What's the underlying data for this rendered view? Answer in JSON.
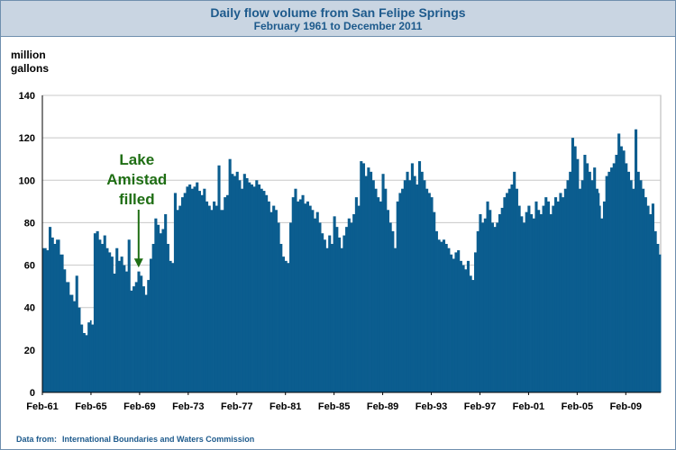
{
  "title": "Daily flow volume from San Felipe Springs",
  "subtitle": "February 1961 to December 2011",
  "footer": {
    "prefix": "Data from:",
    "source": "International Boundaries and Waters Commission"
  },
  "colors": {
    "bar": "#0b5d8f",
    "annotation": "#1f6e14",
    "title": "#1d5a8c",
    "grid": "#c8c8c8"
  },
  "chart_data": {
    "type": "bar",
    "ylabel": "million gallons",
    "ylim": [
      0,
      140
    ],
    "yticks": [
      0,
      20,
      40,
      60,
      80,
      100,
      120,
      140
    ],
    "xlim": [
      1961.08,
      2011.95
    ],
    "xticks": [
      {
        "year": 1961.08,
        "label": "Feb-61"
      },
      {
        "year": 1965.08,
        "label": "Feb-65"
      },
      {
        "year": 1969.08,
        "label": "Feb-69"
      },
      {
        "year": 1973.08,
        "label": "Feb-73"
      },
      {
        "year": 1977.08,
        "label": "Feb-77"
      },
      {
        "year": 1981.08,
        "label": "Feb-81"
      },
      {
        "year": 1985.08,
        "label": "Feb-85"
      },
      {
        "year": 1989.08,
        "label": "Feb-89"
      },
      {
        "year": 1993.08,
        "label": "Feb-93"
      },
      {
        "year": 1997.08,
        "label": "Feb-97"
      },
      {
        "year": 2001.08,
        "label": "Feb-01"
      },
      {
        "year": 2005.08,
        "label": "Feb-05"
      },
      {
        "year": 2009.08,
        "label": "Feb-09"
      }
    ],
    "grid": "horizontal",
    "series": [
      {
        "points": [
          [
            1961.1,
            68
          ],
          [
            1961.4,
            67
          ],
          [
            1961.6,
            78
          ],
          [
            1961.8,
            73
          ],
          [
            1962.0,
            70
          ],
          [
            1962.2,
            72
          ],
          [
            1962.5,
            65
          ],
          [
            1962.8,
            58
          ],
          [
            1963.0,
            52
          ],
          [
            1963.3,
            46
          ],
          [
            1963.6,
            43
          ],
          [
            1963.8,
            55
          ],
          [
            1964.0,
            40
          ],
          [
            1964.2,
            32
          ],
          [
            1964.4,
            28
          ],
          [
            1964.6,
            27
          ],
          [
            1964.8,
            33
          ],
          [
            1965.0,
            34
          ],
          [
            1965.1,
            32
          ],
          [
            1965.3,
            75
          ],
          [
            1965.5,
            76
          ],
          [
            1965.7,
            72
          ],
          [
            1965.9,
            70
          ],
          [
            1966.1,
            74
          ],
          [
            1966.3,
            68
          ],
          [
            1966.5,
            66
          ],
          [
            1966.7,
            64
          ],
          [
            1966.9,
            56
          ],
          [
            1967.1,
            68
          ],
          [
            1967.3,
            62
          ],
          [
            1967.5,
            64
          ],
          [
            1967.7,
            60
          ],
          [
            1967.9,
            57
          ],
          [
            1968.1,
            72
          ],
          [
            1968.3,
            48
          ],
          [
            1968.5,
            50
          ],
          [
            1968.7,
            52
          ],
          [
            1968.9,
            57
          ],
          [
            1969.1,
            55
          ],
          [
            1969.3,
            50
          ],
          [
            1969.5,
            46
          ],
          [
            1969.7,
            53
          ],
          [
            1969.9,
            63
          ],
          [
            1970.1,
            70
          ],
          [
            1970.3,
            82
          ],
          [
            1970.5,
            79
          ],
          [
            1970.7,
            75
          ],
          [
            1970.9,
            77
          ],
          [
            1971.1,
            84
          ],
          [
            1971.3,
            70
          ],
          [
            1971.5,
            62
          ],
          [
            1971.7,
            61
          ],
          [
            1971.9,
            94
          ],
          [
            1972.1,
            86
          ],
          [
            1972.3,
            88
          ],
          [
            1972.5,
            92
          ],
          [
            1972.7,
            94
          ],
          [
            1972.9,
            97
          ],
          [
            1973.1,
            98
          ],
          [
            1973.3,
            96
          ],
          [
            1973.5,
            97
          ],
          [
            1973.7,
            99
          ],
          [
            1973.9,
            95
          ],
          [
            1974.1,
            93
          ],
          [
            1974.3,
            96
          ],
          [
            1974.5,
            90
          ],
          [
            1974.7,
            88
          ],
          [
            1974.9,
            86
          ],
          [
            1975.1,
            90
          ],
          [
            1975.3,
            88
          ],
          [
            1975.5,
            107
          ],
          [
            1975.7,
            86
          ],
          [
            1976.0,
            92
          ],
          [
            1976.2,
            93
          ],
          [
            1976.4,
            110
          ],
          [
            1976.6,
            103
          ],
          [
            1976.8,
            102
          ],
          [
            1977.0,
            104
          ],
          [
            1977.2,
            100
          ],
          [
            1977.4,
            96
          ],
          [
            1977.6,
            103
          ],
          [
            1977.8,
            101
          ],
          [
            1978.0,
            99
          ],
          [
            1978.2,
            98
          ],
          [
            1978.4,
            97
          ],
          [
            1978.6,
            100
          ],
          [
            1978.8,
            98
          ],
          [
            1979.0,
            96
          ],
          [
            1979.2,
            95
          ],
          [
            1979.4,
            93
          ],
          [
            1979.6,
            90
          ],
          [
            1979.8,
            85
          ],
          [
            1980.0,
            88
          ],
          [
            1980.2,
            86
          ],
          [
            1980.4,
            80
          ],
          [
            1980.6,
            70
          ],
          [
            1980.8,
            64
          ],
          [
            1981.0,
            62
          ],
          [
            1981.2,
            61
          ],
          [
            1981.4,
            80
          ],
          [
            1981.6,
            92
          ],
          [
            1981.8,
            96
          ],
          [
            1982.0,
            90
          ],
          [
            1982.2,
            91
          ],
          [
            1982.4,
            93
          ],
          [
            1982.6,
            89
          ],
          [
            1982.8,
            90
          ],
          [
            1983.0,
            88
          ],
          [
            1983.2,
            86
          ],
          [
            1983.4,
            82
          ],
          [
            1983.6,
            85
          ],
          [
            1983.8,
            80
          ],
          [
            1984.0,
            75
          ],
          [
            1984.2,
            72
          ],
          [
            1984.4,
            68
          ],
          [
            1984.6,
            74
          ],
          [
            1984.8,
            70
          ],
          [
            1985.0,
            83
          ],
          [
            1985.2,
            78
          ],
          [
            1985.4,
            73
          ],
          [
            1985.6,
            68
          ],
          [
            1985.8,
            74
          ],
          [
            1986.0,
            78
          ],
          [
            1986.2,
            82
          ],
          [
            1986.4,
            80
          ],
          [
            1986.6,
            84
          ],
          [
            1986.8,
            92
          ],
          [
            1987.0,
            88
          ],
          [
            1987.2,
            109
          ],
          [
            1987.4,
            108
          ],
          [
            1987.6,
            102
          ],
          [
            1987.8,
            106
          ],
          [
            1988.0,
            104
          ],
          [
            1988.2,
            100
          ],
          [
            1988.4,
            96
          ],
          [
            1988.6,
            92
          ],
          [
            1988.8,
            90
          ],
          [
            1989.0,
            103
          ],
          [
            1989.2,
            96
          ],
          [
            1989.4,
            86
          ],
          [
            1989.6,
            80
          ],
          [
            1989.8,
            76
          ],
          [
            1990.0,
            68
          ],
          [
            1990.2,
            90
          ],
          [
            1990.4,
            94
          ],
          [
            1990.6,
            96
          ],
          [
            1990.8,
            100
          ],
          [
            1991.0,
            104
          ],
          [
            1991.2,
            100
          ],
          [
            1991.4,
            108
          ],
          [
            1991.6,
            102
          ],
          [
            1991.8,
            98
          ],
          [
            1992.0,
            109
          ],
          [
            1992.2,
            104
          ],
          [
            1992.4,
            100
          ],
          [
            1992.6,
            96
          ],
          [
            1992.8,
            94
          ],
          [
            1993.0,
            92
          ],
          [
            1993.2,
            85
          ],
          [
            1993.4,
            76
          ],
          [
            1993.6,
            72
          ],
          [
            1993.8,
            71
          ],
          [
            1994.0,
            72
          ],
          [
            1994.2,
            70
          ],
          [
            1994.4,
            68
          ],
          [
            1994.6,
            65
          ],
          [
            1994.8,
            63
          ],
          [
            1995.0,
            66
          ],
          [
            1995.2,
            67
          ],
          [
            1995.4,
            62
          ],
          [
            1995.6,
            60
          ],
          [
            1995.8,
            58
          ],
          [
            1996.0,
            62
          ],
          [
            1996.2,
            55
          ],
          [
            1996.4,
            53
          ],
          [
            1996.6,
            66
          ],
          [
            1996.8,
            76
          ],
          [
            1997.0,
            84
          ],
          [
            1997.2,
            80
          ],
          [
            1997.4,
            82
          ],
          [
            1997.6,
            90
          ],
          [
            1997.8,
            86
          ],
          [
            1998.0,
            80
          ],
          [
            1998.2,
            78
          ],
          [
            1998.4,
            80
          ],
          [
            1998.6,
            84
          ],
          [
            1998.8,
            87
          ],
          [
            1999.0,
            92
          ],
          [
            1999.2,
            94
          ],
          [
            1999.4,
            96
          ],
          [
            1999.6,
            98
          ],
          [
            1999.8,
            104
          ],
          [
            2000.0,
            96
          ],
          [
            2000.2,
            88
          ],
          [
            2000.4,
            83
          ],
          [
            2000.6,
            80
          ],
          [
            2000.8,
            85
          ],
          [
            2001.0,
            88
          ],
          [
            2001.2,
            84
          ],
          [
            2001.4,
            82
          ],
          [
            2001.6,
            90
          ],
          [
            2001.8,
            86
          ],
          [
            2002.0,
            84
          ],
          [
            2002.2,
            88
          ],
          [
            2002.4,
            92
          ],
          [
            2002.6,
            90
          ],
          [
            2002.8,
            84
          ],
          [
            2003.0,
            88
          ],
          [
            2003.2,
            92
          ],
          [
            2003.4,
            90
          ],
          [
            2003.6,
            94
          ],
          [
            2003.8,
            92
          ],
          [
            2004.0,
            96
          ],
          [
            2004.2,
            100
          ],
          [
            2004.4,
            104
          ],
          [
            2004.6,
            120
          ],
          [
            2004.8,
            116
          ],
          [
            2005.0,
            110
          ],
          [
            2005.2,
            96
          ],
          [
            2005.4,
            100
          ],
          [
            2005.6,
            112
          ],
          [
            2005.8,
            108
          ],
          [
            2006.0,
            104
          ],
          [
            2006.2,
            100
          ],
          [
            2006.4,
            106
          ],
          [
            2006.6,
            96
          ],
          [
            2006.8,
            94
          ],
          [
            2006.9,
            88
          ],
          [
            2007.0,
            82
          ],
          [
            2007.2,
            90
          ],
          [
            2007.4,
            102
          ],
          [
            2007.6,
            104
          ],
          [
            2007.8,
            106
          ],
          [
            2008.0,
            108
          ],
          [
            2008.2,
            112
          ],
          [
            2008.4,
            122
          ],
          [
            2008.6,
            116
          ],
          [
            2008.8,
            114
          ],
          [
            2009.0,
            108
          ],
          [
            2009.2,
            104
          ],
          [
            2009.4,
            100
          ],
          [
            2009.6,
            96
          ],
          [
            2009.8,
            124
          ],
          [
            2010.0,
            104
          ],
          [
            2010.2,
            100
          ],
          [
            2010.4,
            96
          ],
          [
            2010.6,
            92
          ],
          [
            2010.8,
            88
          ],
          [
            2011.0,
            84
          ],
          [
            2011.2,
            89
          ],
          [
            2011.4,
            76
          ],
          [
            2011.6,
            70
          ],
          [
            2011.8,
            65
          ],
          [
            2011.95,
            65
          ]
        ]
      }
    ],
    "annotation": {
      "lines": [
        "Lake",
        "Amistad",
        "filled"
      ],
      "year": 1969.0,
      "value": 58
    }
  }
}
